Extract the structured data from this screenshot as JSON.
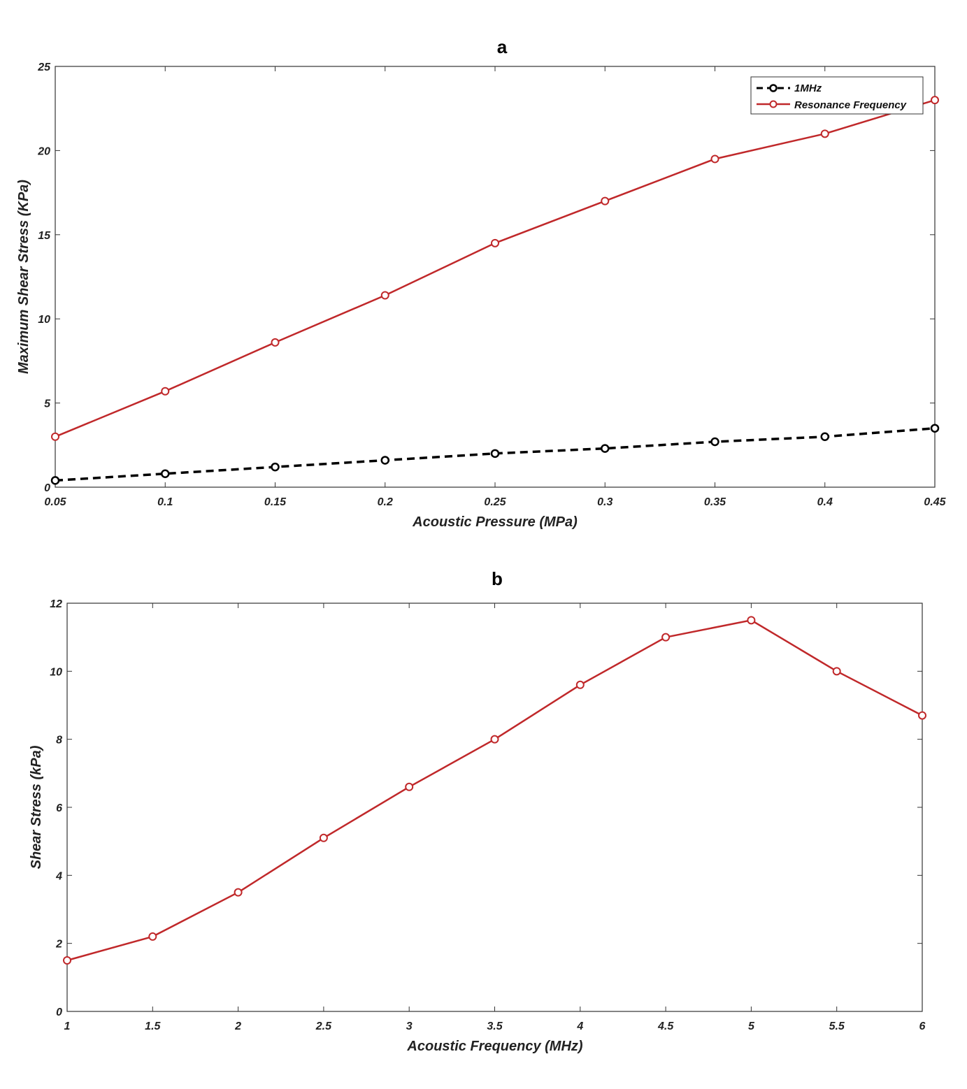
{
  "colors": {
    "red": "#c0282a",
    "black": "#000000",
    "axis": "#333333"
  },
  "chart_data": [
    {
      "type": "line",
      "title": "a",
      "xlabel": "Acoustic Pressure (MPa)",
      "ylabel": "Maximum Shear Stress (KPa)",
      "xlim": [
        0.05,
        0.45
      ],
      "ylim": [
        0,
        25
      ],
      "x": [
        0.05,
        0.1,
        0.15,
        0.2,
        0.25,
        0.3,
        0.35,
        0.4,
        0.45
      ],
      "xticks": [
        "0.05",
        "0.1",
        "0.15",
        "0.2",
        "0.25",
        "0.3",
        "0.35",
        "0.4",
        "0.45"
      ],
      "yticks": [
        "0",
        "5",
        "10",
        "15",
        "20",
        "25"
      ],
      "legend_position": "top-right",
      "grid": false,
      "series": [
        {
          "name": "1MHz",
          "style": "dashed",
          "color": "#000000",
          "values": [
            0.4,
            0.8,
            1.2,
            1.6,
            2.0,
            2.3,
            2.7,
            3.0,
            3.5
          ]
        },
        {
          "name": "Resonance Frequency",
          "style": "solid",
          "color": "#c0282a",
          "values": [
            3.0,
            5.7,
            8.6,
            11.4,
            14.5,
            17.0,
            19.5,
            21.0,
            23.0
          ]
        }
      ]
    },
    {
      "type": "line",
      "title": "b",
      "xlabel": "Acoustic Frequency (MHz)",
      "ylabel": "Shear Stress (kPa)",
      "xlim": [
        1,
        6
      ],
      "ylim": [
        0,
        12
      ],
      "x": [
        1,
        1.5,
        2,
        2.5,
        3,
        3.5,
        4,
        4.5,
        5,
        5.5,
        6
      ],
      "xticks": [
        "1",
        "1.5",
        "2",
        "2.5",
        "3",
        "3.5",
        "4",
        "4.5",
        "5",
        "5.5",
        "6"
      ],
      "yticks": [
        "0",
        "2",
        "4",
        "6",
        "8",
        "10",
        "12"
      ],
      "grid": false,
      "series": [
        {
          "style": "solid",
          "color": "#c0282a",
          "values": [
            1.5,
            2.2,
            3.5,
            5.1,
            6.6,
            8.0,
            9.6,
            11.0,
            11.5,
            10.0,
            8.7
          ]
        }
      ]
    }
  ]
}
